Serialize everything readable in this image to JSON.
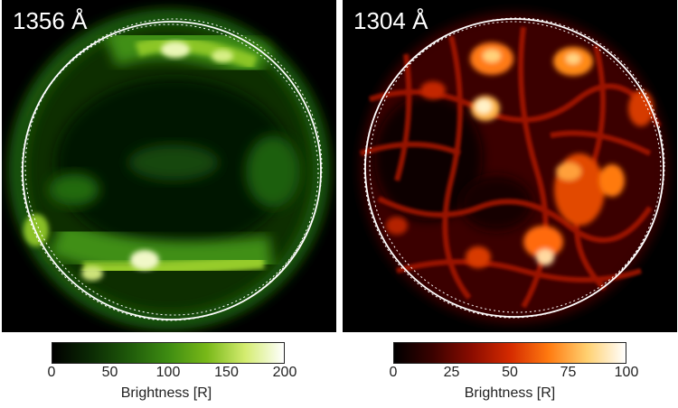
{
  "panels": [
    {
      "id": "left",
      "label": "1356 Å",
      "colormap": [
        "#000000",
        "#0b2a04",
        "#1f5a0a",
        "#3e8c12",
        "#78b818",
        "#d4ec70",
        "#ffffff"
      ],
      "colorbar": {
        "ticks": [
          "0",
          "50",
          "100",
          "150",
          "200"
        ],
        "range": [
          0,
          200
        ],
        "title": "Brightness [R]"
      }
    },
    {
      "id": "right",
      "label": "1304 Å",
      "colormap": [
        "#000000",
        "#3a0200",
        "#8a0c00",
        "#d42a00",
        "#ff7a10",
        "#ffd070",
        "#ffffff"
      ],
      "colorbar": {
        "ticks": [
          "0",
          "25",
          "50",
          "75",
          "100"
        ],
        "range": [
          0,
          100
        ],
        "title": "Brightness [R]"
      }
    }
  ]
}
